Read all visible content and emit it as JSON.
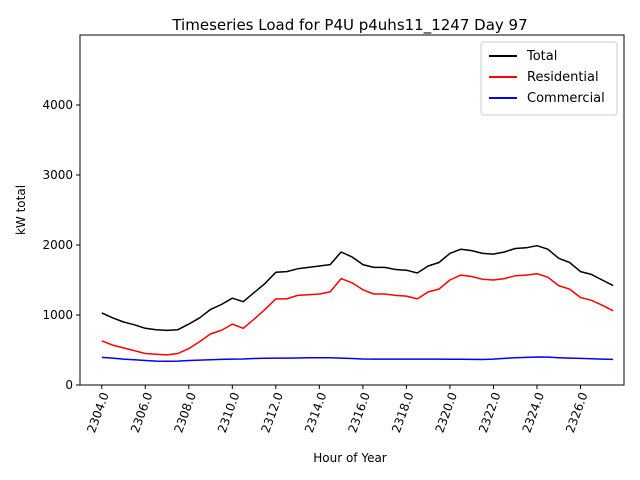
{
  "chart_data": {
    "type": "line",
    "title": "Timeseries Load for P4U p4uhs11_1247  Day 97",
    "xlabel": "Hour of Year",
    "ylabel": "kW total",
    "xlim": [
      2303.0,
      2328.0
    ],
    "ylim": [
      0,
      5000
    ],
    "xticks": [
      2304,
      2306,
      2308,
      2310,
      2312,
      2314,
      2316,
      2318,
      2320,
      2322,
      2324,
      2326
    ],
    "xtick_labels": [
      "2304.0",
      "2306.0",
      "2308.0",
      "2310.0",
      "2312.0",
      "2314.0",
      "2316.0",
      "2318.0",
      "2320.0",
      "2322.0",
      "2324.0",
      "2326.0"
    ],
    "yticks": [
      0,
      1000,
      2000,
      3000,
      4000
    ],
    "ytick_labels": [
      "0",
      "1000",
      "2000",
      "3000",
      "4000"
    ],
    "grid": false,
    "legend_position": "top-right",
    "series": [
      {
        "name": "Total",
        "color": "#000000",
        "x": [
          2304.0,
          2304.5,
          2305.0,
          2305.5,
          2306.0,
          2306.5,
          2307.0,
          2307.5,
          2308.0,
          2308.5,
          2309.0,
          2309.5,
          2310.0,
          2310.5,
          2311.0,
          2311.5,
          2312.0,
          2312.5,
          2313.0,
          2313.5,
          2314.0,
          2314.5,
          2315.0,
          2315.5,
          2316.0,
          2316.5,
          2317.0,
          2317.5,
          2318.0,
          2318.5,
          2319.0,
          2319.5,
          2320.0,
          2320.5,
          2321.0,
          2321.5,
          2322.0,
          2322.5,
          2323.0,
          2323.5,
          2324.0,
          2324.5,
          2325.0,
          2325.5,
          2326.0,
          2326.5,
          2327.0,
          2327.5
        ],
        "values": [
          1030,
          960,
          900,
          860,
          810,
          790,
          780,
          790,
          870,
          960,
          1080,
          1150,
          1240,
          1190,
          1320,
          1450,
          1610,
          1620,
          1660,
          1680,
          1700,
          1720,
          1900,
          1830,
          1720,
          1680,
          1680,
          1650,
          1640,
          1600,
          1700,
          1750,
          1880,
          1940,
          1920,
          1880,
          1870,
          1900,
          1950,
          1960,
          1990,
          1940,
          1810,
          1750,
          1620,
          1580,
          1500,
          1420
        ]
      },
      {
        "name": "Residential",
        "color": "#ff0000",
        "x": [
          2304.0,
          2304.5,
          2305.0,
          2305.5,
          2306.0,
          2306.5,
          2307.0,
          2307.5,
          2308.0,
          2308.5,
          2309.0,
          2309.5,
          2310.0,
          2310.5,
          2311.0,
          2311.5,
          2312.0,
          2312.5,
          2313.0,
          2313.5,
          2314.0,
          2314.5,
          2315.0,
          2315.5,
          2316.0,
          2316.5,
          2317.0,
          2317.5,
          2318.0,
          2318.5,
          2319.0,
          2319.5,
          2320.0,
          2320.5,
          2321.0,
          2321.5,
          2322.0,
          2322.5,
          2323.0,
          2323.5,
          2324.0,
          2324.5,
          2325.0,
          2325.5,
          2326.0,
          2326.5,
          2327.0,
          2327.5
        ],
        "values": [
          630,
          570,
          530,
          490,
          450,
          440,
          430,
          450,
          520,
          620,
          730,
          780,
          870,
          810,
          940,
          1080,
          1230,
          1230,
          1280,
          1290,
          1300,
          1330,
          1520,
          1460,
          1360,
          1300,
          1300,
          1280,
          1270,
          1230,
          1330,
          1370,
          1500,
          1570,
          1550,
          1510,
          1500,
          1520,
          1560,
          1570,
          1590,
          1540,
          1420,
          1370,
          1250,
          1210,
          1140,
          1060
        ]
      },
      {
        "name": "Commercial",
        "color": "#0000ff",
        "x": [
          2304.0,
          2304.5,
          2305.0,
          2305.5,
          2306.0,
          2306.5,
          2307.0,
          2307.5,
          2308.0,
          2308.5,
          2309.0,
          2309.5,
          2310.0,
          2310.5,
          2311.0,
          2311.5,
          2312.0,
          2312.5,
          2313.0,
          2313.5,
          2314.0,
          2314.5,
          2315.0,
          2315.5,
          2316.0,
          2316.5,
          2317.0,
          2317.5,
          2318.0,
          2318.5,
          2319.0,
          2319.5,
          2320.0,
          2320.5,
          2321.0,
          2321.5,
          2322.0,
          2322.5,
          2323.0,
          2323.5,
          2324.0,
          2324.5,
          2325.0,
          2325.5,
          2326.0,
          2326.5,
          2327.0,
          2327.5
        ],
        "values": [
          395,
          385,
          370,
          360,
          350,
          342,
          340,
          342,
          350,
          356,
          362,
          365,
          370,
          372,
          378,
          382,
          385,
          385,
          386,
          388,
          388,
          388,
          385,
          378,
          372,
          370,
          370,
          370,
          370,
          370,
          370,
          370,
          368,
          368,
          365,
          364,
          370,
          380,
          390,
          395,
          400,
          398,
          390,
          385,
          380,
          375,
          370,
          365
        ]
      }
    ]
  }
}
